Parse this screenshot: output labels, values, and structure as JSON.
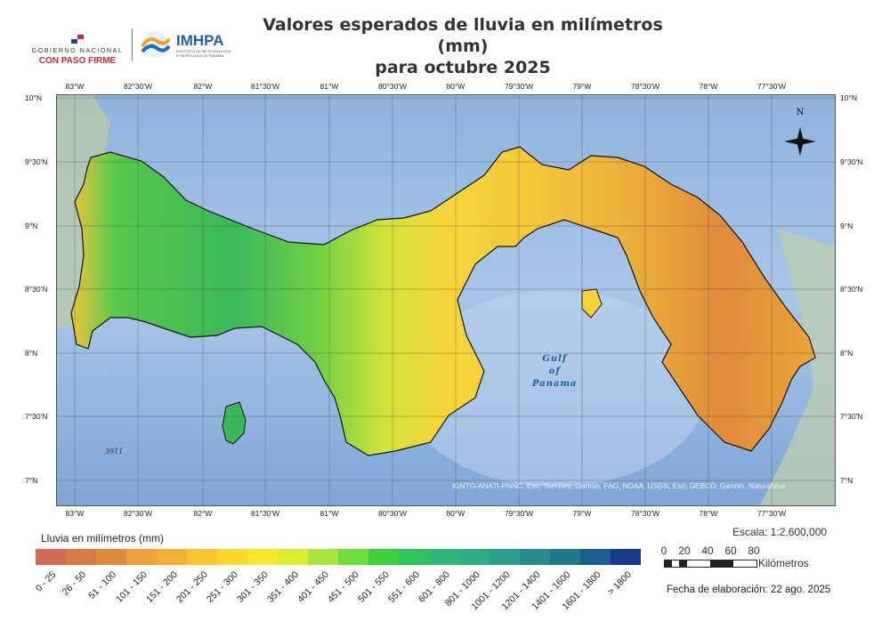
{
  "header": {
    "title_line1": "Valores esperados de lluvia en milímetros (mm)",
    "title_line2": "para octubre 2025",
    "gob_logo_line1": "GOBIERNO NACIONAL",
    "gob_logo_line2": "CON PASO FIRME",
    "imhpa_logo": "IMHPA",
    "imhpa_sub": "INSTITUTO DE METEOROLOGÍA E HIDROLOGÍA DE PANAMÁ"
  },
  "map": {
    "lon_labels": [
      "83°W",
      "82°30'W",
      "82°W",
      "81°30'W",
      "81°W",
      "80°30'W",
      "80°W",
      "79°30'W",
      "79°W",
      "78°30'W",
      "78°W",
      "77°30'W"
    ],
    "lat_labels": [
      "10°N",
      "9°30'N",
      "9°N",
      "8°30'N",
      "8°N",
      "7°30'N",
      "7°N"
    ],
    "gulf_label": [
      "Gulf",
      "of",
      "Panama"
    ],
    "depth_label": "3911",
    "north_label": "N",
    "credits": "IGNTG-ANATI-PNNC, Esri, TomTom, Garmin, FAO, NOAA, USGS, Esri, GEBCO, Garmin, NaturalVue"
  },
  "legend": {
    "title": "Lluvia en milímetros (mm)",
    "classes": [
      {
        "label": "0 - 25",
        "color": "#d06a52"
      },
      {
        "label": "26 - 50",
        "color": "#d97a44"
      },
      {
        "label": "51 - 100",
        "color": "#e08a3c"
      },
      {
        "label": "101 - 150",
        "color": "#eda23a"
      },
      {
        "label": "151 - 200",
        "color": "#f2b132"
      },
      {
        "label": "201 - 250",
        "color": "#f6c431"
      },
      {
        "label": "251 - 300",
        "color": "#f9d62c"
      },
      {
        "label": "301 - 350",
        "color": "#f7e82a"
      },
      {
        "label": "351 - 400",
        "color": "#d9ee2c"
      },
      {
        "label": "401 - 450",
        "color": "#a9e63b"
      },
      {
        "label": "451 - 500",
        "color": "#6ede3b"
      },
      {
        "label": "501 - 550",
        "color": "#3dd23d"
      },
      {
        "label": "551 - 600",
        "color": "#2ec45a"
      },
      {
        "label": "601 - 800",
        "color": "#31b878"
      },
      {
        "label": "801 - 1000",
        "color": "#2fae86"
      },
      {
        "label": "1001 - 1200",
        "color": "#2a9f8c"
      },
      {
        "label": "1201 - 1400",
        "color": "#278d8c"
      },
      {
        "label": "1401 - 1600",
        "color": "#21788c"
      },
      {
        "label": "1601 - 1800",
        "color": "#1c5e91"
      },
      {
        "label": "> 1800",
        "color": "#163b8a"
      }
    ]
  },
  "scale": {
    "text": "Escala: 1:2,600,000",
    "ticks": [
      "0",
      "20",
      "40",
      "60",
      "80"
    ],
    "unit": "Kilómetros"
  },
  "footer": {
    "fecha": "Fecha de elaboración: 22 ago. 2025"
  }
}
